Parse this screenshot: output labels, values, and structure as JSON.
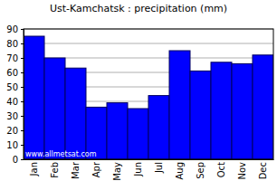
{
  "chart_data": {
    "type": "bar",
    "title": "Ust-Kamchatsk : precipitation (mm)",
    "categories": [
      "Jan",
      "Feb",
      "Mar",
      "Apr",
      "May",
      "Jun",
      "Jul",
      "Aug",
      "Sep",
      "Oct",
      "Nov",
      "Dec"
    ],
    "values": [
      85,
      70,
      63,
      36,
      39,
      35,
      44,
      75,
      61,
      67,
      66,
      72
    ],
    "color": "#0000ff",
    "ylim": [
      0,
      90
    ],
    "yticks": [
      0,
      10,
      20,
      30,
      40,
      50,
      60,
      70,
      80,
      90
    ],
    "grid": true,
    "annotations": [
      "www.allmetsat.com"
    ]
  }
}
